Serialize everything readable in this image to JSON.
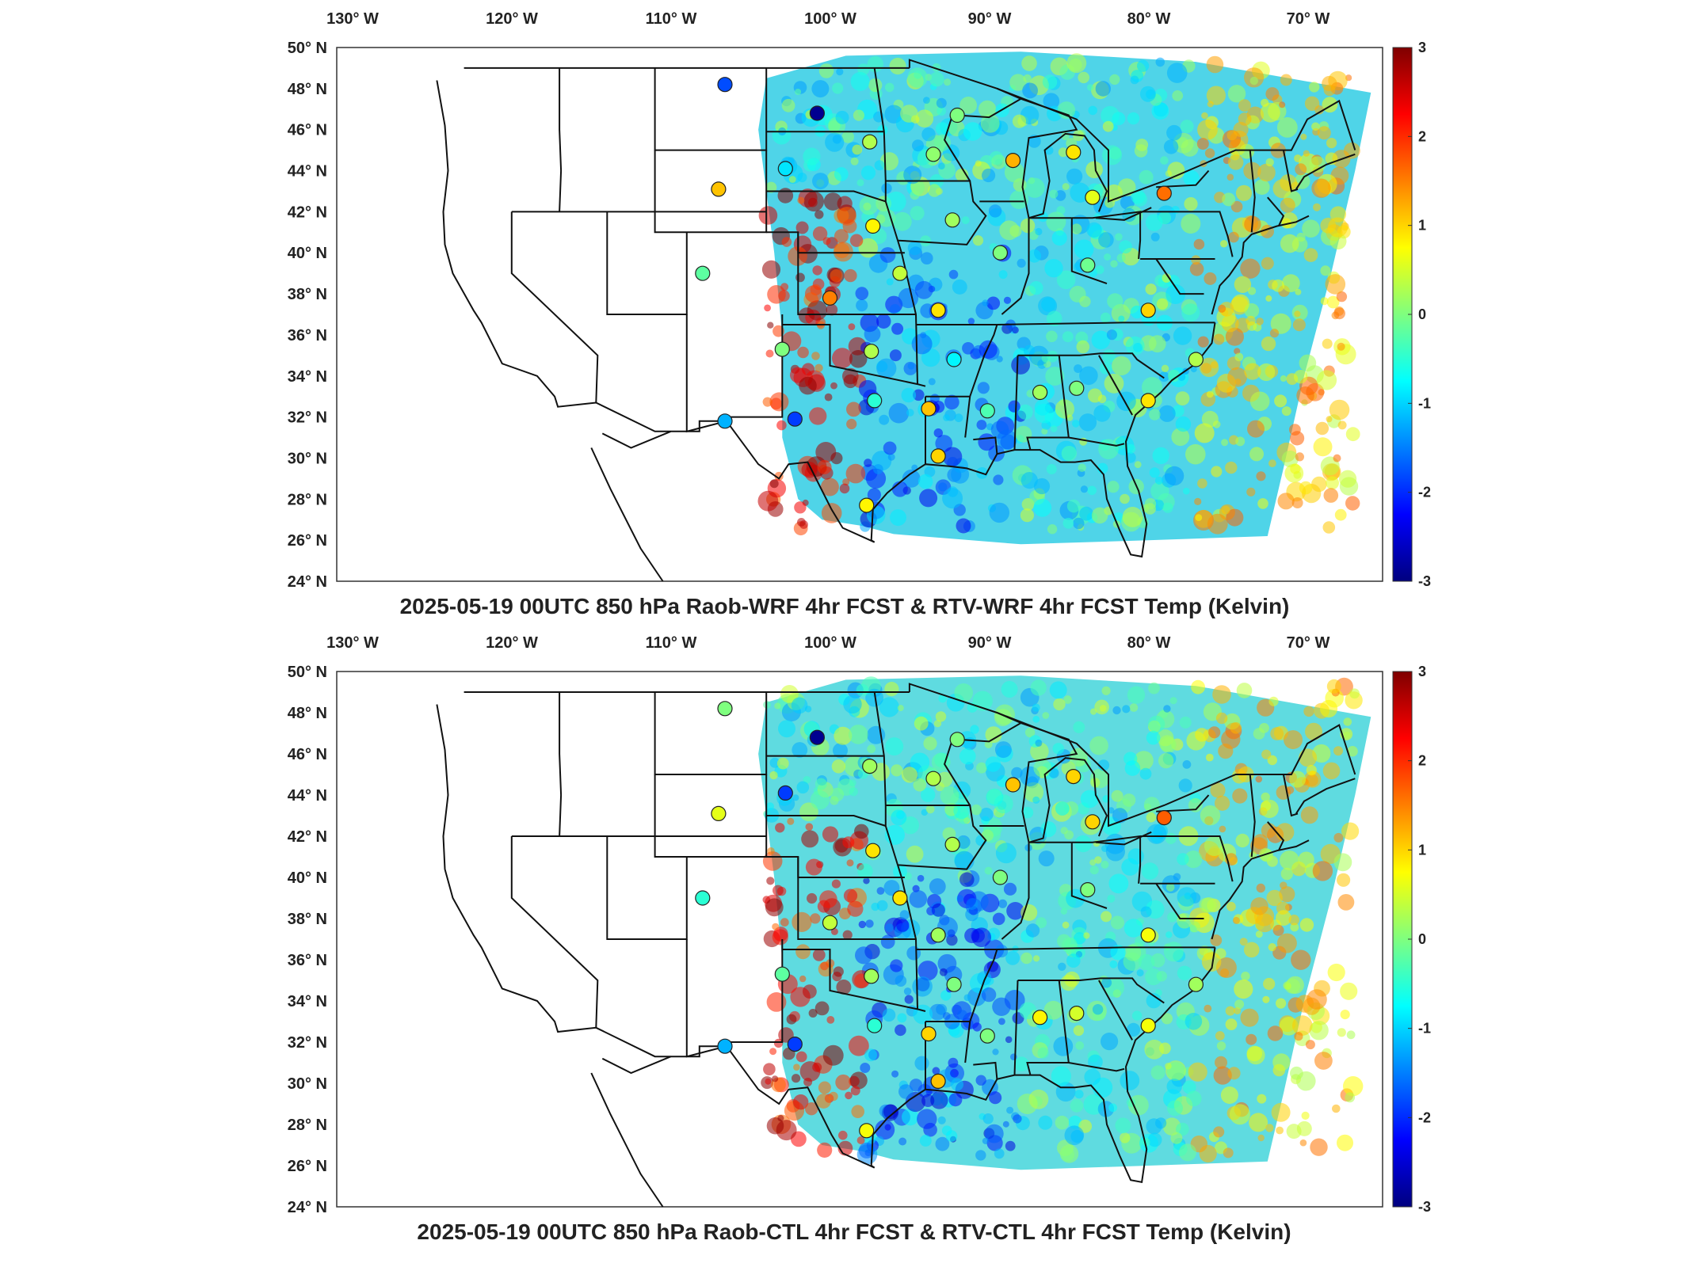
{
  "colorbar": {
    "min": -3,
    "max": 3,
    "ticks": [
      "3",
      "2",
      "1",
      "0",
      "-1",
      "-2",
      "-3"
    ],
    "colormap": [
      "#00007f",
      "#0000ff",
      "#007fff",
      "#00ffff",
      "#7fff7f",
      "#ffff00",
      "#ff7f00",
      "#ff0000",
      "#7f0000"
    ]
  },
  "lon_labels": [
    "130",
    "120",
    "110",
    "100",
    "90",
    "80",
    "70"
  ],
  "lon_hemisphere": "W",
  "lat_labels": [
    "50",
    "48",
    "46",
    "44",
    "42",
    "40",
    "38",
    "36",
    "34",
    "32",
    "30",
    "28",
    "26",
    "24"
  ],
  "lat_hemisphere": "N",
  "panels": [
    {
      "title": "2025-05-19 00UTC 850 hPa Raob-WRF 4hr FCST & RTV-WRF 4hr FCST Temp (Kelvin)",
      "raob_stations": [
        {
          "lon": -106.6,
          "lat": 48.2,
          "v": -1.8
        },
        {
          "lon": -100.8,
          "lat": 46.8,
          "v": -2.9
        },
        {
          "lon": -97.5,
          "lat": 45.4,
          "v": 0.3
        },
        {
          "lon": -93.5,
          "lat": 44.8,
          "v": 0.1
        },
        {
          "lon": -88.5,
          "lat": 44.5,
          "v": 1.2
        },
        {
          "lon": -84.7,
          "lat": 44.9,
          "v": 0.9
        },
        {
          "lon": -83.5,
          "lat": 42.7,
          "v": 0.6
        },
        {
          "lon": -79.0,
          "lat": 42.9,
          "v": 1.6
        },
        {
          "lon": -102.8,
          "lat": 44.1,
          "v": -0.9
        },
        {
          "lon": -107.0,
          "lat": 43.1,
          "v": 1.1
        },
        {
          "lon": -97.3,
          "lat": 41.3,
          "v": 0.8
        },
        {
          "lon": -92.3,
          "lat": 41.6,
          "v": 0.2
        },
        {
          "lon": -89.3,
          "lat": 40.0,
          "v": 0.0
        },
        {
          "lon": -83.8,
          "lat": 39.4,
          "v": -0.1
        },
        {
          "lon": -108.0,
          "lat": 39.0,
          "v": -0.2
        },
        {
          "lon": -95.6,
          "lat": 39.0,
          "v": 0.4
        },
        {
          "lon": -100.0,
          "lat": 37.8,
          "v": 1.5
        },
        {
          "lon": -93.2,
          "lat": 37.2,
          "v": 0.9
        },
        {
          "lon": -80.0,
          "lat": 37.2,
          "v": 1.0
        },
        {
          "lon": -103.0,
          "lat": 35.3,
          "v": 0.0
        },
        {
          "lon": -97.4,
          "lat": 35.2,
          "v": 0.3
        },
        {
          "lon": -92.2,
          "lat": 34.8,
          "v": -0.8
        },
        {
          "lon": -77.0,
          "lat": 34.8,
          "v": 0.3
        },
        {
          "lon": -97.2,
          "lat": 32.8,
          "v": -0.5
        },
        {
          "lon": -93.8,
          "lat": 32.4,
          "v": 1.1
        },
        {
          "lon": -90.1,
          "lat": 32.3,
          "v": -0.3
        },
        {
          "lon": -86.8,
          "lat": 33.2,
          "v": 0.2
        },
        {
          "lon": -84.5,
          "lat": 33.4,
          "v": 0.0
        },
        {
          "lon": -80.0,
          "lat": 32.8,
          "v": 0.9
        },
        {
          "lon": -106.6,
          "lat": 31.8,
          "v": -1.2
        },
        {
          "lon": -102.2,
          "lat": 31.9,
          "v": -1.9
        },
        {
          "lon": -93.2,
          "lat": 30.1,
          "v": 1.0
        },
        {
          "lon": -97.7,
          "lat": 27.7,
          "v": 0.8
        },
        {
          "lon": -92.0,
          "lat": 46.7,
          "v": 0.0
        }
      ]
    },
    {
      "title": "2025-05-19 00UTC 850 hPa Raob-CTL 4hr FCST & RTV-CTL 4hr FCST Temp (Kelvin)",
      "raob_stations": [
        {
          "lon": -106.6,
          "lat": 48.2,
          "v": 0.0
        },
        {
          "lon": -100.8,
          "lat": 46.8,
          "v": -2.9
        },
        {
          "lon": -97.5,
          "lat": 45.4,
          "v": 0.2
        },
        {
          "lon": -93.5,
          "lat": 44.8,
          "v": 0.3
        },
        {
          "lon": -88.5,
          "lat": 44.5,
          "v": 1.1
        },
        {
          "lon": -84.7,
          "lat": 44.9,
          "v": 1.0
        },
        {
          "lon": -83.5,
          "lat": 42.7,
          "v": 1.0
        },
        {
          "lon": -79.0,
          "lat": 42.9,
          "v": 1.7
        },
        {
          "lon": -102.8,
          "lat": 44.1,
          "v": -1.9
        },
        {
          "lon": -107.0,
          "lat": 43.1,
          "v": 0.6
        },
        {
          "lon": -97.3,
          "lat": 41.3,
          "v": 0.9
        },
        {
          "lon": -92.3,
          "lat": 41.6,
          "v": 0.3
        },
        {
          "lon": -89.3,
          "lat": 40.0,
          "v": 0.0
        },
        {
          "lon": -83.8,
          "lat": 39.4,
          "v": 0.0
        },
        {
          "lon": -108.0,
          "lat": 39.0,
          "v": -0.5
        },
        {
          "lon": -95.6,
          "lat": 39.0,
          "v": 0.9
        },
        {
          "lon": -100.0,
          "lat": 37.8,
          "v": 0.4
        },
        {
          "lon": -93.2,
          "lat": 37.2,
          "v": 0.2
        },
        {
          "lon": -80.0,
          "lat": 37.2,
          "v": 0.7
        },
        {
          "lon": -103.0,
          "lat": 35.3,
          "v": -0.2
        },
        {
          "lon": -97.4,
          "lat": 35.2,
          "v": 0.2
        },
        {
          "lon": -92.2,
          "lat": 34.8,
          "v": 0.0
        },
        {
          "lon": -77.0,
          "lat": 34.8,
          "v": 0.2
        },
        {
          "lon": -97.2,
          "lat": 32.8,
          "v": -0.5
        },
        {
          "lon": -93.8,
          "lat": 32.4,
          "v": 1.0
        },
        {
          "lon": -90.1,
          "lat": 32.3,
          "v": 0.0
        },
        {
          "lon": -86.8,
          "lat": 33.2,
          "v": 0.8
        },
        {
          "lon": -84.5,
          "lat": 33.4,
          "v": 0.5
        },
        {
          "lon": -80.0,
          "lat": 32.8,
          "v": 0.7
        },
        {
          "lon": -106.6,
          "lat": 31.8,
          "v": -1.2
        },
        {
          "lon": -102.2,
          "lat": 31.9,
          "v": -1.9
        },
        {
          "lon": -93.2,
          "lat": 30.1,
          "v": 1.1
        },
        {
          "lon": -97.7,
          "lat": 27.7,
          "v": 0.7
        },
        {
          "lon": -92.0,
          "lat": 46.7,
          "v": 0.0
        }
      ]
    }
  ]
}
